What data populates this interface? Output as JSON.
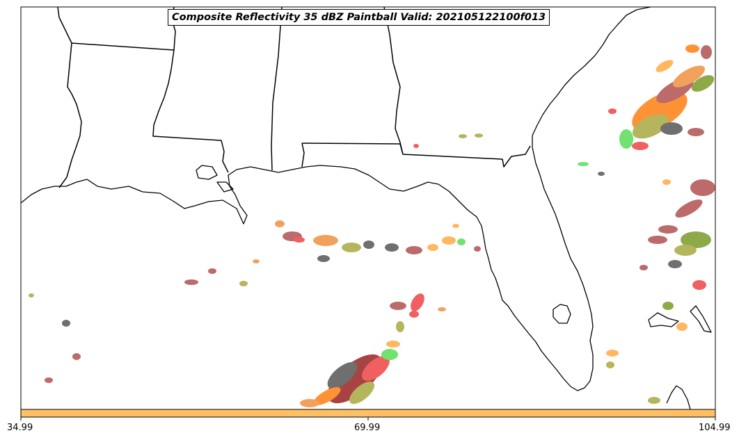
{
  "title": "Composite Reflectivity 35 dBZ Paintball Valid: 202105122100f013",
  "colorbar": {
    "color": "#ffc064",
    "ticks": [
      "34.99",
      "69.99",
      "104.99"
    ]
  },
  "map": {
    "region": "US Gulf Coast and Florida",
    "land_color": "#ffffff",
    "boundary_color": "#000000"
  },
  "paintball_colors": [
    "#f09040",
    "#ff7f10",
    "#ee4444",
    "#b05050",
    "#992222",
    "#a8a840",
    "#7a9a28",
    "#55dd55",
    "#555555",
    "#ffaa44"
  ]
}
